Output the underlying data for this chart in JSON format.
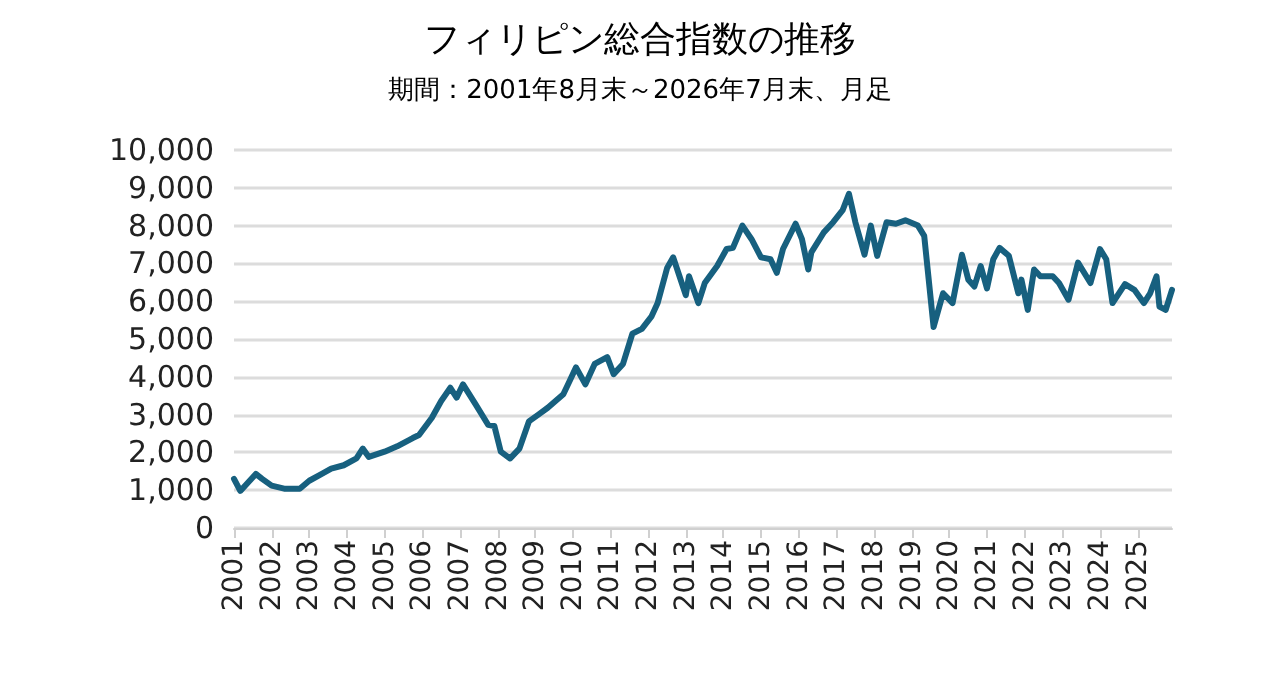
{
  "chart_data": {
    "type": "line",
    "title": "フィリピン総合指数の推移",
    "subtitle": "期間：2001年8月末～2026年7月末、月足",
    "x": [
      "2001-08",
      "2001-10",
      "2002-03",
      "2002-05",
      "2002-08",
      "2002-12",
      "2003-05",
      "2003-08",
      "2003-12",
      "2004-03",
      "2004-07",
      "2004-11",
      "2005-01",
      "2005-03",
      "2005-08",
      "2005-12",
      "2006-05",
      "2006-07",
      "2006-11",
      "2007-02",
      "2007-05",
      "2007-07",
      "2007-09",
      "2008-01",
      "2008-05",
      "2008-07",
      "2008-09",
      "2008-12",
      "2009-03",
      "2009-06",
      "2009-09",
      "2009-12",
      "2010-05",
      "2010-07",
      "2010-09",
      "2010-12",
      "2011-03",
      "2011-07",
      "2011-09",
      "2011-12",
      "2012-03",
      "2012-06",
      "2012-09",
      "2012-11",
      "2013-02",
      "2013-04",
      "2013-06",
      "2013-08",
      "2013-09",
      "2013-12",
      "2014-02",
      "2014-06",
      "2014-09",
      "2014-11",
      "2015-02",
      "2015-05",
      "2015-08",
      "2015-11",
      "2016-01",
      "2016-03",
      "2016-07",
      "2016-09",
      "2016-11",
      "2016-12",
      "2017-04",
      "2017-07",
      "2017-10",
      "2017-12",
      "2018-02",
      "2018-05",
      "2018-07",
      "2018-09",
      "2018-12",
      "2019-03",
      "2019-06",
      "2019-10",
      "2019-12",
      "2020-03",
      "2020-06",
      "2020-09",
      "2020-12",
      "2021-02",
      "2021-04",
      "2021-06",
      "2021-08",
      "2021-10",
      "2021-12",
      "2022-03",
      "2022-06",
      "2022-07",
      "2022-09",
      "2022-11",
      "2023-01",
      "2023-05",
      "2023-07",
      "2023-10",
      "2024-01",
      "2024-05",
      "2024-08",
      "2024-10",
      "2024-12",
      "2025-04",
      "2025-07",
      "2025-10",
      "2025-12",
      "2026-02",
      "2026-03",
      "2026-05",
      "2026-07"
    ],
    "series": [
      {
        "color": "#17607f",
        "values": [
          1300,
          980,
          1430,
          1300,
          1120,
          1040,
          1040,
          1250,
          1430,
          1570,
          1660,
          1840,
          2100,
          1880,
          2020,
          2160,
          2380,
          2460,
          2910,
          3360,
          3710,
          3450,
          3800,
          3270,
          2730,
          2700,
          2020,
          1840,
          2100,
          2820,
          3000,
          3180,
          3540,
          3890,
          4250,
          3800,
          4340,
          4520,
          4070,
          4340,
          5140,
          5270,
          5590,
          5950,
          6880,
          7160,
          6660,
          6160,
          6660,
          5950,
          6480,
          6930,
          7380,
          7410,
          8000,
          7640,
          7160,
          7110,
          6750,
          7380,
          8050,
          7640,
          6840,
          7290,
          7820,
          8090,
          8410,
          8840,
          8090,
          7230,
          8000,
          7200,
          8090,
          8050,
          8140,
          8000,
          7730,
          5320,
          6210,
          5950,
          7230,
          6570,
          6390,
          6930,
          6340,
          7110,
          7410,
          7200,
          6210,
          6570,
          5770,
          6840,
          6660,
          6660,
          6480,
          6040,
          7020,
          6480,
          7380,
          7110,
          5950,
          6450,
          6300,
          5950,
          6210,
          6660,
          5860,
          5770,
          6300
        ]
      }
    ],
    "xlim": [
      "2001-08",
      "2026-07"
    ],
    "xticks": [
      {
        "value": "2001-08",
        "label": "2001"
      },
      {
        "value": "2002-08",
        "label": "2002"
      },
      {
        "value": "2003-08",
        "label": "2003"
      },
      {
        "value": "2004-08",
        "label": "2004"
      },
      {
        "value": "2005-08",
        "label": "2005"
      },
      {
        "value": "2006-08",
        "label": "2006"
      },
      {
        "value": "2007-08",
        "label": "2007"
      },
      {
        "value": "2008-08",
        "label": "2008"
      },
      {
        "value": "2009-08",
        "label": "2009"
      },
      {
        "value": "2010-08",
        "label": "2010"
      },
      {
        "value": "2011-08",
        "label": "2011"
      },
      {
        "value": "2012-08",
        "label": "2012"
      },
      {
        "value": "2013-08",
        "label": "2013"
      },
      {
        "value": "2014-08",
        "label": "2014"
      },
      {
        "value": "2015-08",
        "label": "2015"
      },
      {
        "value": "2016-08",
        "label": "2016"
      },
      {
        "value": "2017-08",
        "label": "2017"
      },
      {
        "value": "2018-08",
        "label": "2018"
      },
      {
        "value": "2019-08",
        "label": "2019"
      },
      {
        "value": "2020-08",
        "label": "2020"
      },
      {
        "value": "2021-08",
        "label": "2021"
      },
      {
        "value": "2022-08",
        "label": "2022"
      },
      {
        "value": "2023-08",
        "label": "2023"
      },
      {
        "value": "2024-08",
        "label": "2024"
      },
      {
        "value": "2025-08",
        "label": "2025"
      }
    ],
    "ylim": [
      0,
      10000
    ],
    "yticks": [
      0,
      {
        "value": 1000,
        "label": "1,000"
      },
      {
        "value": 2000,
        "label": "2,000"
      },
      {
        "value": 3000,
        "label": "3,000"
      },
      {
        "value": 4000,
        "label": "4,000"
      },
      {
        "value": 5000,
        "label": "5,000"
      },
      {
        "value": 6000,
        "label": "6,000"
      },
      {
        "value": 7000,
        "label": "7,000"
      },
      {
        "value": 8000,
        "label": "8,000"
      },
      {
        "value": 9000,
        "label": "9,000"
      },
      {
        "value": 10000,
        "label": "10,000"
      }
    ],
    "grid": "y",
    "marker": "none",
    "line_style": "solid"
  }
}
